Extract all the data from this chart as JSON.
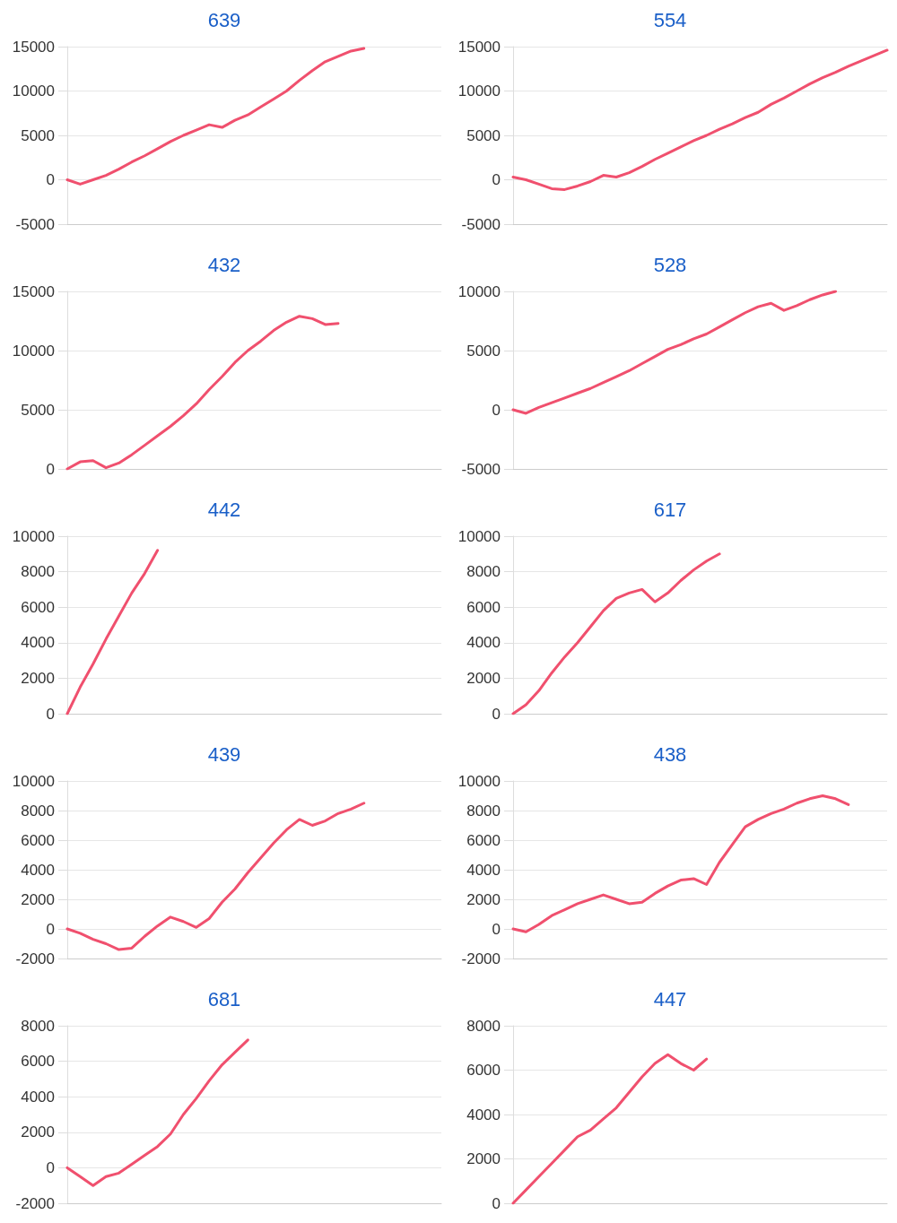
{
  "chart_data": [
    {
      "type": "line",
      "title": "639",
      "categories": [
        null,
        null,
        null,
        null,
        null,
        null,
        null,
        null,
        null,
        null,
        null,
        null,
        null,
        null,
        null,
        null,
        null,
        null,
        null,
        null,
        null,
        null,
        null,
        null,
        null,
        null,
        null,
        null,
        null,
        null
      ],
      "series": [
        {
          "color": "#f0506e",
          "values": [
            0,
            -500,
            0,
            500,
            1200,
            2000,
            2700,
            3500,
            4300,
            5000,
            5600,
            6200,
            5900,
            6700,
            7300,
            8200,
            9100,
            10000,
            11200,
            12300,
            13300,
            13900,
            14500,
            14800,
            null,
            null,
            null,
            null,
            null,
            null
          ]
        }
      ],
      "ylim": [
        -5000,
        15000
      ],
      "yticks": [
        -5000,
        0,
        5000,
        10000,
        15000
      ],
      "grid": "y",
      "tick_labels": "y",
      "marker": "none",
      "line_style": "solid"
    },
    {
      "type": "line",
      "title": "554",
      "categories": [
        null,
        null,
        null,
        null,
        null,
        null,
        null,
        null,
        null,
        null,
        null,
        null,
        null,
        null,
        null,
        null,
        null,
        null,
        null,
        null,
        null,
        null,
        null,
        null,
        null,
        null,
        null,
        null,
        null,
        null
      ],
      "series": [
        {
          "color": "#f0506e",
          "values": [
            300,
            0,
            -500,
            -1000,
            -1100,
            -700,
            -200,
            500,
            300,
            800,
            1500,
            2300,
            3000,
            3700,
            4400,
            5000,
            5700,
            6300,
            7000,
            7600,
            8500,
            9200,
            10000,
            10800,
            11500,
            12100,
            12800,
            13400,
            14000,
            14600
          ]
        }
      ],
      "ylim": [
        -5000,
        15000
      ],
      "yticks": [
        -5000,
        0,
        5000,
        10000,
        15000
      ],
      "grid": "y",
      "tick_labels": "y",
      "marker": "none",
      "line_style": "solid"
    },
    {
      "type": "line",
      "title": "432",
      "categories": [
        null,
        null,
        null,
        null,
        null,
        null,
        null,
        null,
        null,
        null,
        null,
        null,
        null,
        null,
        null,
        null,
        null,
        null,
        null,
        null,
        null,
        null,
        null,
        null,
        null,
        null,
        null,
        null,
        null,
        null
      ],
      "series": [
        {
          "color": "#f0506e",
          "values": [
            0,
            600,
            700,
            100,
            500,
            1200,
            2000,
            2800,
            3600,
            4500,
            5500,
            6700,
            7800,
            9000,
            10000,
            10800,
            11700,
            12400,
            12900,
            12700,
            12200,
            12300,
            null,
            null,
            null,
            null,
            null,
            null,
            null,
            null
          ]
        }
      ],
      "ylim": [
        0,
        15000
      ],
      "yticks": [
        0,
        5000,
        10000,
        15000
      ],
      "grid": "y",
      "tick_labels": "y",
      "marker": "none",
      "line_style": "solid"
    },
    {
      "type": "line",
      "title": "528",
      "categories": [
        null,
        null,
        null,
        null,
        null,
        null,
        null,
        null,
        null,
        null,
        null,
        null,
        null,
        null,
        null,
        null,
        null,
        null,
        null,
        null,
        null,
        null,
        null,
        null,
        null,
        null,
        null,
        null,
        null,
        null
      ],
      "series": [
        {
          "color": "#f0506e",
          "values": [
            0,
            -300,
            200,
            600,
            1000,
            1400,
            1800,
            2300,
            2800,
            3300,
            3900,
            4500,
            5100,
            5500,
            6000,
            6400,
            7000,
            7600,
            8200,
            8700,
            9000,
            8400,
            8800,
            9300,
            9700,
            10000,
            null,
            null,
            null,
            null
          ]
        }
      ],
      "ylim": [
        -5000,
        10000
      ],
      "yticks": [
        -5000,
        0,
        5000,
        10000
      ],
      "grid": "y",
      "tick_labels": "y",
      "marker": "none",
      "line_style": "solid"
    },
    {
      "type": "line",
      "title": "442",
      "categories": [
        null,
        null,
        null,
        null,
        null,
        null,
        null,
        null,
        null,
        null,
        null,
        null,
        null,
        null,
        null,
        null,
        null,
        null,
        null,
        null,
        null,
        null,
        null,
        null,
        null,
        null,
        null,
        null,
        null,
        null
      ],
      "series": [
        {
          "color": "#f0506e",
          "values": [
            0,
            1500,
            2800,
            4200,
            5500,
            6800,
            7900,
            9200,
            null,
            null,
            null,
            null,
            null,
            null,
            null,
            null,
            null,
            null,
            null,
            null,
            null,
            null,
            null,
            null,
            null,
            null,
            null,
            null,
            null,
            null
          ]
        }
      ],
      "ylim": [
        0,
        10000
      ],
      "yticks": [
        0,
        2000,
        4000,
        6000,
        8000,
        10000
      ],
      "grid": "y",
      "tick_labels": "y",
      "marker": "none",
      "line_style": "solid"
    },
    {
      "type": "line",
      "title": "617",
      "categories": [
        null,
        null,
        null,
        null,
        null,
        null,
        null,
        null,
        null,
        null,
        null,
        null,
        null,
        null,
        null,
        null,
        null,
        null,
        null,
        null,
        null,
        null,
        null,
        null,
        null,
        null,
        null,
        null,
        null,
        null
      ],
      "series": [
        {
          "color": "#f0506e",
          "values": [
            0,
            500,
            1300,
            2300,
            3200,
            4000,
            4900,
            5800,
            6500,
            6800,
            7000,
            6300,
            6800,
            7500,
            8100,
            8600,
            9000,
            null,
            null,
            null,
            null,
            null,
            null,
            null,
            null,
            null,
            null,
            null,
            null,
            null
          ]
        }
      ],
      "ylim": [
        0,
        10000
      ],
      "yticks": [
        0,
        2000,
        4000,
        6000,
        8000,
        10000
      ],
      "grid": "y",
      "tick_labels": "y",
      "marker": "none",
      "line_style": "solid"
    },
    {
      "type": "line",
      "title": "439",
      "categories": [
        null,
        null,
        null,
        null,
        null,
        null,
        null,
        null,
        null,
        null,
        null,
        null,
        null,
        null,
        null,
        null,
        null,
        null,
        null,
        null,
        null,
        null,
        null,
        null,
        null,
        null,
        null,
        null,
        null,
        null
      ],
      "series": [
        {
          "color": "#f0506e",
          "values": [
            0,
            -300,
            -700,
            -1000,
            -1400,
            -1300,
            -500,
            200,
            800,
            500,
            100,
            700,
            1800,
            2700,
            3800,
            4800,
            5800,
            6700,
            7400,
            7000,
            7300,
            7800,
            8100,
            8500,
            null,
            null,
            null,
            null,
            null,
            null
          ]
        }
      ],
      "ylim": [
        -2000,
        10000
      ],
      "yticks": [
        -2000,
        0,
        2000,
        4000,
        6000,
        8000,
        10000
      ],
      "grid": "y",
      "tick_labels": "y",
      "marker": "none",
      "line_style": "solid"
    },
    {
      "type": "line",
      "title": "438",
      "categories": [
        null,
        null,
        null,
        null,
        null,
        null,
        null,
        null,
        null,
        null,
        null,
        null,
        null,
        null,
        null,
        null,
        null,
        null,
        null,
        null,
        null,
        null,
        null,
        null,
        null,
        null,
        null,
        null,
        null,
        null
      ],
      "series": [
        {
          "color": "#f0506e",
          "values": [
            0,
            -200,
            300,
            900,
            1300,
            1700,
            2000,
            2300,
            2000,
            1700,
            1800,
            2400,
            2900,
            3300,
            3400,
            3000,
            4500,
            5700,
            6900,
            7400,
            7800,
            8100,
            8500,
            8800,
            9000,
            8800,
            8400,
            null,
            null,
            null
          ]
        }
      ],
      "ylim": [
        -2000,
        10000
      ],
      "yticks": [
        -2000,
        0,
        2000,
        4000,
        6000,
        8000,
        10000
      ],
      "grid": "y",
      "tick_labels": "y",
      "marker": "none",
      "line_style": "solid"
    },
    {
      "type": "line",
      "title": "681",
      "categories": [
        null,
        null,
        null,
        null,
        null,
        null,
        null,
        null,
        null,
        null,
        null,
        null,
        null,
        null,
        null,
        null,
        null,
        null,
        null,
        null,
        null,
        null,
        null,
        null,
        null,
        null,
        null,
        null,
        null,
        null
      ],
      "series": [
        {
          "color": "#f0506e",
          "values": [
            0,
            -500,
            -1000,
            -500,
            -300,
            200,
            700,
            1200,
            1900,
            3000,
            3900,
            4900,
            5800,
            6500,
            7200,
            null,
            null,
            null,
            null,
            null,
            null,
            null,
            null,
            null,
            null,
            null,
            null,
            null,
            null,
            null
          ]
        }
      ],
      "ylim": [
        -2000,
        8000
      ],
      "yticks": [
        -2000,
        0,
        2000,
        4000,
        6000,
        8000
      ],
      "grid": "y",
      "tick_labels": "y",
      "marker": "none",
      "line_style": "solid"
    },
    {
      "type": "line",
      "title": "447",
      "categories": [
        null,
        null,
        null,
        null,
        null,
        null,
        null,
        null,
        null,
        null,
        null,
        null,
        null,
        null,
        null,
        null,
        null,
        null,
        null,
        null,
        null,
        null,
        null,
        null,
        null,
        null,
        null,
        null,
        null,
        null
      ],
      "series": [
        {
          "color": "#f0506e",
          "values": [
            0,
            600,
            1200,
            1800,
            2400,
            3000,
            3300,
            3800,
            4300,
            5000,
            5700,
            6300,
            6700,
            6300,
            6000,
            6500,
            null,
            null,
            null,
            null,
            null,
            null,
            null,
            null,
            null,
            null,
            null,
            null,
            null,
            null
          ]
        }
      ],
      "ylim": [
        0,
        8000
      ],
      "yticks": [
        0,
        2000,
        4000,
        6000,
        8000
      ],
      "grid": "y",
      "tick_labels": "y",
      "marker": "none",
      "line_style": "solid"
    }
  ]
}
